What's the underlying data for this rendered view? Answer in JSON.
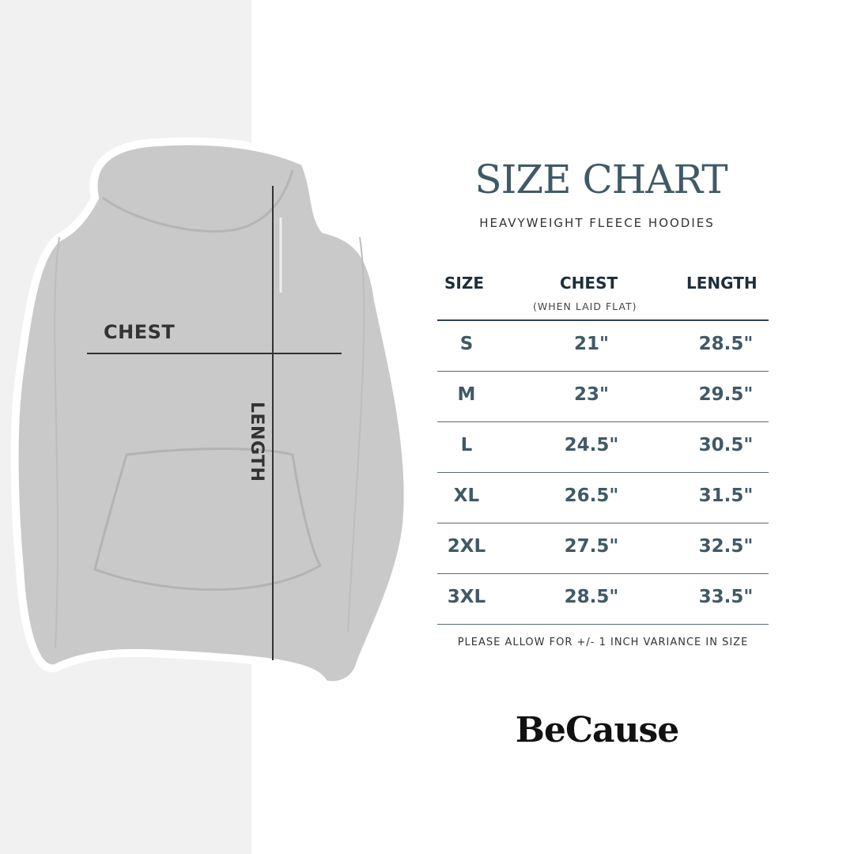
{
  "title": "SIZE CHART",
  "subtitle": "HEAVYWEIGHT FLEECE HOODIES",
  "diagram": {
    "chest_label": "CHEST",
    "length_label": "LENGTH"
  },
  "table": {
    "headers": {
      "size": "SIZE",
      "chest": "CHEST",
      "chest_note": "(WHEN LAID FLAT)",
      "length": "LENGTH"
    },
    "rows": [
      {
        "size": "S",
        "chest": "21\"",
        "length": "28.5\""
      },
      {
        "size": "M",
        "chest": "23\"",
        "length": "29.5\""
      },
      {
        "size": "L",
        "chest": "24.5\"",
        "length": "30.5\""
      },
      {
        "size": "XL",
        "chest": "26.5\"",
        "length": "31.5\""
      },
      {
        "size": "2XL",
        "chest": "27.5\"",
        "length": "32.5\""
      },
      {
        "size": "3XL",
        "chest": "28.5\"",
        "length": "33.5\""
      }
    ]
  },
  "note": "PLEASE ALLOW FOR +/- 1 INCH VARIANCE IN SIZE",
  "brand": "BeCause",
  "colors": {
    "accent": "#3f5a66",
    "header_text": "#1e2e3a",
    "hoodie": "#c9c9c9",
    "panel": "#f1f1f1"
  }
}
